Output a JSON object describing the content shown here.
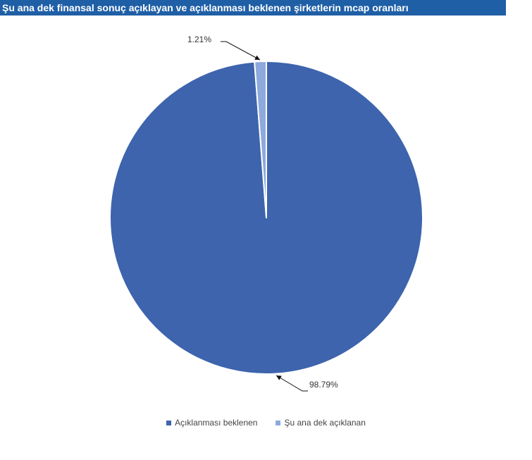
{
  "chart_data": {
    "type": "pie",
    "title": "Şu ana dek finansal sonuç açıklayan ve açıklanması beklenen şirketlerin mcap oranları",
    "categories": [
      "Açıklanması beklenen",
      "Şu ana dek açıklanan"
    ],
    "values": [
      98.79,
      1.21
    ],
    "labels": [
      "98.79%",
      "1.21%"
    ],
    "colors": [
      "#3d64ad",
      "#8ea9db"
    ],
    "legend_position": "bottom"
  }
}
